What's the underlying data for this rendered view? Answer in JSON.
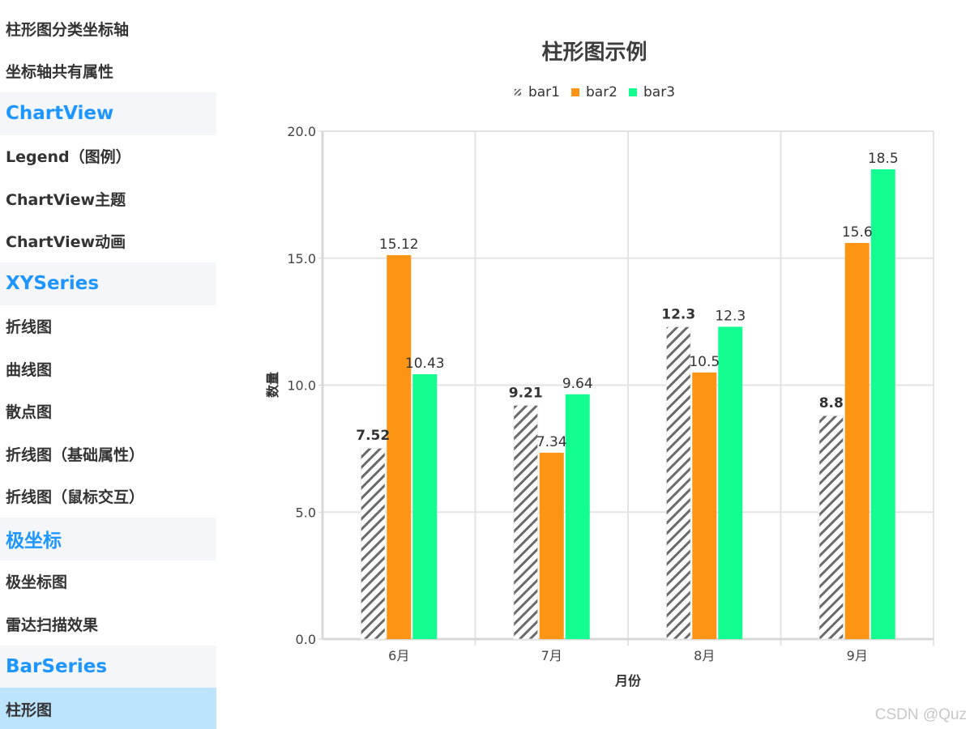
{
  "sidebar": {
    "items": [
      {
        "label": "柱形图分类坐标轴",
        "type": "item"
      },
      {
        "label": "坐标轴共有属性",
        "type": "item"
      },
      {
        "label": "ChartView",
        "type": "group"
      },
      {
        "label": "Legend（图例）",
        "type": "item"
      },
      {
        "label": "ChartView主题",
        "type": "item"
      },
      {
        "label": "ChartView动画",
        "type": "item"
      },
      {
        "label": "XYSeries",
        "type": "group"
      },
      {
        "label": "折线图",
        "type": "item"
      },
      {
        "label": "曲线图",
        "type": "item"
      },
      {
        "label": "散点图",
        "type": "item"
      },
      {
        "label": "折线图（基础属性）",
        "type": "item"
      },
      {
        "label": "折线图（鼠标交互）",
        "type": "item"
      },
      {
        "label": "极坐标",
        "type": "group"
      },
      {
        "label": "极坐标图",
        "type": "item"
      },
      {
        "label": "雷达扫描效果",
        "type": "item"
      },
      {
        "label": "BarSeries",
        "type": "group"
      },
      {
        "label": "柱形图",
        "type": "item",
        "selected": true
      }
    ]
  },
  "colors": {
    "group_text": "#1e96ff",
    "group_bg": "#f5f6fa",
    "selected_bg": "#bde4fd",
    "bar1_hatch": "#666666",
    "bar2": "#fd9413",
    "bar3": "#13fd91",
    "grid": "#e3e3e3"
  },
  "watermark": "CSDN @Quz",
  "chart_data": {
    "type": "bar",
    "title": "柱形图示例",
    "xlabel": "月份",
    "ylabel": "数量",
    "categories": [
      "6月",
      "7月",
      "8月",
      "9月"
    ],
    "series": [
      {
        "name": "bar1",
        "values": [
          7.52,
          9.21,
          12.3,
          8.8
        ],
        "labels": [
          "7.52",
          "9.21",
          "12.3",
          "8.8"
        ],
        "style": "hatch"
      },
      {
        "name": "bar2",
        "values": [
          15.12,
          7.34,
          10.5,
          15.6
        ],
        "labels": [
          "15.12",
          "7.34",
          "10.5",
          "15.6"
        ],
        "color": "#fd9413"
      },
      {
        "name": "bar3",
        "values": [
          10.43,
          9.64,
          12.3,
          18.5
        ],
        "labels": [
          "10.43",
          "9.64",
          "12.3",
          "18.5"
        ],
        "color": "#13fd91"
      }
    ],
    "ylim": [
      0,
      20
    ],
    "yticks": [
      "0.0",
      "5.0",
      "10.0",
      "15.0",
      "20.0"
    ],
    "grid": true,
    "legend_position": "top"
  }
}
